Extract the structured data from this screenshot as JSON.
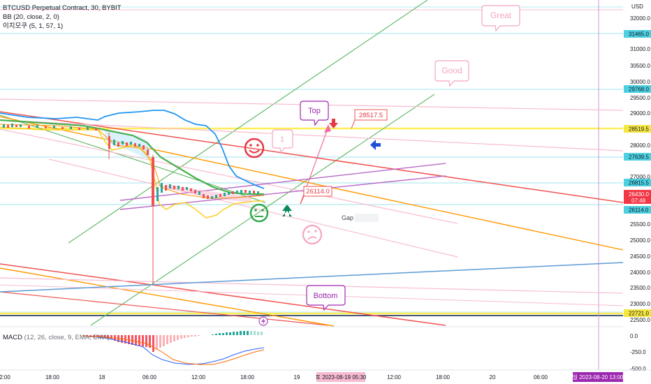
{
  "indicators": {
    "symbol": "BTCUSD Perpetual Contract, 30, BYBIT",
    "bb": "BB (20, close, 2, 0)",
    "ichimoku": "이치모쿠 (5, 1, 57, 1)",
    "macd_name": "MACD",
    "macd_params": "(12, 26, close, 9, EMA, EMA)"
  },
  "price_axis": {
    "currency": "USD",
    "ticks": [
      "32000.0",
      "31000.0",
      "30500.0",
      "30000.0",
      "29500.0",
      "29000.0",
      "28000.0",
      "27000.0",
      "25500.0",
      "25000.0",
      "24500.0",
      "24000.0",
      "23500.0",
      "23000.0",
      "22500.0"
    ],
    "level_labels": [
      {
        "text": "31465.0",
        "color": "#4dd0e1"
      },
      {
        "text": "29768.0",
        "color": "#4dd0e1"
      },
      {
        "text": "28519.5",
        "color": "#f5e642"
      },
      {
        "text": "27639.5",
        "color": "#4dd0e1"
      },
      {
        "text": "26815.5",
        "color": "#4dd0e1"
      },
      {
        "text": "26114.0",
        "color": "#4dd0e1"
      },
      {
        "text": "22721.0",
        "color": "#f5e642"
      }
    ],
    "current_price": "26430.0",
    "countdown": "07:48",
    "current_color": "#f23645"
  },
  "macd_axis": {
    "ticks": [
      "0.0",
      "-250.0",
      "-500.0"
    ]
  },
  "time_axis": {
    "ticks": [
      "2:00",
      "18:00",
      "18",
      "06:00",
      "12:00",
      "18:00",
      "19",
      "12:00",
      "18:00",
      "20",
      "06:00"
    ],
    "crosshair_label": "토 2023-08-19  05:30",
    "crosshair_label_right": "일 2023-08-20  13:00"
  },
  "annotations": {
    "great": "Great",
    "good": "Good",
    "top": "Top",
    "one": "1",
    "bottom": "Bottom",
    "gap": "Gap",
    "price_top": "28517.5",
    "price_mid": "26114.0"
  },
  "colors": {
    "green_line": "#66bb6a",
    "red_line": "#ef5350",
    "orange_line": "#ff9800",
    "pink_line": "#f8bbd0",
    "purple_line": "#ba68c8",
    "blue_line": "#5b9bd5",
    "cyan_level": "#b2ebf2",
    "yellow_level": "#ffee58",
    "bb_upper": "#2196f3",
    "macd_positive": "#26a69a",
    "macd_negative": "#f7525f"
  }
}
